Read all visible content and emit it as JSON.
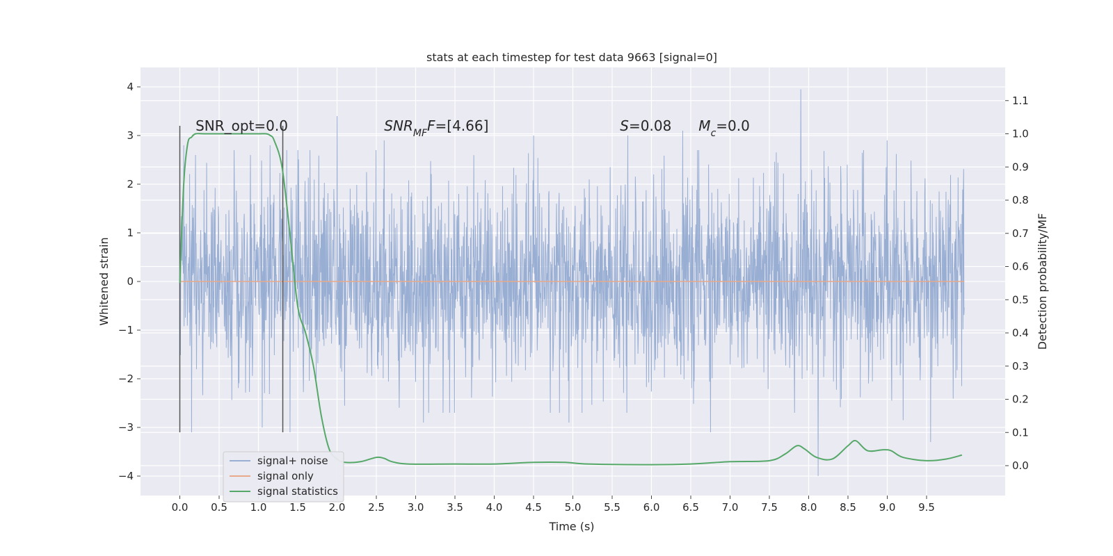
{
  "chart_data": {
    "type": "line",
    "title": "stats at each timestep for test data 9663 [signal=0]",
    "xlabel": "Time (s)",
    "ylabel": "Whitened strain",
    "ylabel_right": "Detection probability/MF",
    "xlim": [
      -0.5,
      10.5
    ],
    "ylim": [
      -4.4,
      4.4
    ],
    "ylim_right": [
      -0.09,
      1.2
    ],
    "x_ticks": [
      0.0,
      0.5,
      1.0,
      1.5,
      2.0,
      2.5,
      3.0,
      3.5,
      4.0,
      4.5,
      5.0,
      5.5,
      6.0,
      6.5,
      7.0,
      7.5,
      8.0,
      8.5,
      9.0,
      9.5
    ],
    "x_tick_labels": [
      "0.0",
      "0.5",
      "1.0",
      "1.5",
      "2.0",
      "2.5",
      "3.0",
      "3.5",
      "4.0",
      "4.5",
      "5.0",
      "5.5",
      "6.0",
      "6.5",
      "7.0",
      "7.5",
      "8.0",
      "8.5",
      "9.0",
      "9.5"
    ],
    "y_ticks": [
      -4,
      -3,
      -2,
      -1,
      0,
      1,
      2,
      3,
      4
    ],
    "y_tick_labels": [
      "−4",
      "−3",
      "−2",
      "−1",
      "0",
      "1",
      "2",
      "3",
      "4"
    ],
    "y_ticks_right": [
      0.0,
      0.1,
      0.2,
      0.3,
      0.4,
      0.5,
      0.6,
      0.7,
      0.8,
      0.9,
      1.0,
      1.1
    ],
    "y_tick_labels_right": [
      "0.0",
      "0.1",
      "0.2",
      "0.3",
      "0.4",
      "0.5",
      "0.6",
      "0.7",
      "0.8",
      "0.9",
      "1.0",
      "1.1"
    ],
    "grid": true,
    "legend_position": "lower-left",
    "colors": {
      "background": "#eaeaf2",
      "grid": "#ffffff",
      "noise": "#99aed3",
      "signal": "#e8a98b",
      "stats": "#55a868",
      "marker": "#555555"
    },
    "series": [
      {
        "name": "signal+ noise",
        "axis": "left",
        "x_range": [
          0.0,
          9.98
        ],
        "envelope_typical": [
          -1.3,
          1.3
        ],
        "upper_peaks": [
          [
            0.05,
            2.8
          ],
          [
            0.2,
            2.6
          ],
          [
            0.9,
            2.6
          ],
          [
            1.15,
            2.8
          ],
          [
            1.5,
            2.7
          ],
          [
            2.0,
            3.4
          ],
          [
            2.6,
            2.9
          ],
          [
            4.5,
            3.0
          ],
          [
            5.7,
            3.0
          ],
          [
            6.4,
            3.1
          ],
          [
            6.6,
            2.7
          ],
          [
            7.9,
            3.95
          ],
          [
            8.12,
            4.05
          ],
          [
            8.7,
            2.7
          ],
          [
            9.0,
            2.9
          ]
        ],
        "lower_peaks": [
          [
            0.15,
            -3.1
          ],
          [
            1.05,
            -3.0
          ],
          [
            1.4,
            -3.1
          ],
          [
            3.1,
            -2.9
          ],
          [
            4.95,
            -2.9
          ],
          [
            6.75,
            -3.1
          ],
          [
            8.12,
            -4.0
          ],
          [
            9.2,
            -2.85
          ],
          [
            9.55,
            -3.3
          ]
        ]
      },
      {
        "name": "signal only",
        "axis": "left",
        "x": [
          0.0,
          9.98
        ],
        "y": [
          0.0,
          0.0
        ]
      },
      {
        "name": "signal statistics",
        "axis": "right",
        "x": [
          0.0,
          0.05,
          0.1,
          0.15,
          0.2,
          0.3,
          0.5,
          0.8,
          1.0,
          1.1,
          1.15,
          1.2,
          1.3,
          1.4,
          1.5,
          1.6,
          1.7,
          1.8,
          1.9,
          2.0,
          2.1,
          2.3,
          2.5,
          2.6,
          2.7,
          2.9,
          3.5,
          4.0,
          4.5,
          4.9,
          5.2,
          6.0,
          6.5,
          7.0,
          7.5,
          7.7,
          7.85,
          7.95,
          8.1,
          8.3,
          8.5,
          8.6,
          8.75,
          8.95,
          9.05,
          9.2,
          9.5,
          9.75,
          9.95
        ],
        "y": [
          0.55,
          0.85,
          0.97,
          0.99,
          1.0,
          1.0,
          1.0,
          1.0,
          1.0,
          1.0,
          0.995,
          0.98,
          0.9,
          0.7,
          0.48,
          0.4,
          0.3,
          0.15,
          0.05,
          0.02,
          0.01,
          0.012,
          0.025,
          0.022,
          0.012,
          0.005,
          0.005,
          0.005,
          0.01,
          0.01,
          0.005,
          0.003,
          0.005,
          0.012,
          0.015,
          0.035,
          0.06,
          0.05,
          0.025,
          0.02,
          0.06,
          0.075,
          0.045,
          0.048,
          0.045,
          0.025,
          0.015,
          0.02,
          0.032
        ]
      }
    ],
    "markers": [
      {
        "x": 0.0,
        "y_range": [
          -3.1,
          3.2
        ]
      },
      {
        "x": 1.31,
        "y_range": [
          -3.1,
          3.2
        ]
      }
    ],
    "annotations": [
      {
        "x": 0.2,
        "y": 3.1,
        "parts": [
          {
            "text": "SNR_opt=0.0"
          }
        ]
      },
      {
        "x": 2.6,
        "y": 3.1,
        "parts": [
          {
            "text": "SNR",
            "italic": true
          },
          {
            "text": "MF",
            "italic": true,
            "sub": true
          },
          {
            "text": "F",
            "italic": true
          },
          {
            "text": "=[4.66]"
          }
        ]
      },
      {
        "x": 5.6,
        "y": 3.1,
        "parts": [
          {
            "text": "S",
            "italic": true
          },
          {
            "text": "=0.08"
          }
        ]
      },
      {
        "x": 6.6,
        "y": 3.1,
        "parts": [
          {
            "text": "M",
            "italic": true
          },
          {
            "text": "c",
            "italic": true,
            "sub": true
          },
          {
            "text": "=0.0"
          }
        ]
      }
    ]
  }
}
